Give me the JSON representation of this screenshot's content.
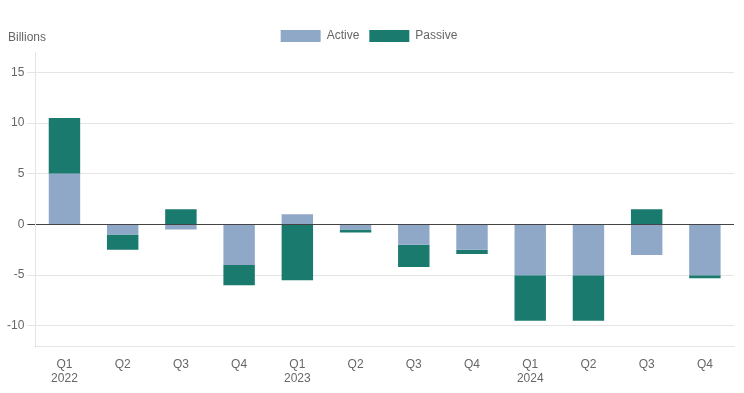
{
  "chart_data": {
    "type": "bar",
    "ylabel": "Billions",
    "categories": [
      "Q1\n2022",
      "Q2",
      "Q3",
      "Q4",
      "Q1\n2023",
      "Q2",
      "Q3",
      "Q4",
      "Q1\n2024",
      "Q2",
      "Q3",
      "Q4"
    ],
    "series": [
      {
        "name": "Active",
        "color": "#8fa8c8",
        "values": [
          5.0,
          -1.0,
          -0.5,
          -4.0,
          1.0,
          -0.5,
          -2.0,
          -2.5,
          -5.0,
          -5.0,
          -3.0,
          -5.0
        ]
      },
      {
        "name": "Passive",
        "color": "#1a7a6e",
        "values": [
          5.5,
          -1.5,
          1.5,
          -2.0,
          -5.5,
          -0.3,
          -2.2,
          -0.4,
          -4.5,
          -4.5,
          1.5,
          -0.3
        ]
      }
    ],
    "stacked": true,
    "ylim": [
      -12,
      17
    ],
    "yticks": [
      -10,
      -5,
      0,
      5,
      10,
      15
    ],
    "grid": true,
    "legend": "top"
  }
}
